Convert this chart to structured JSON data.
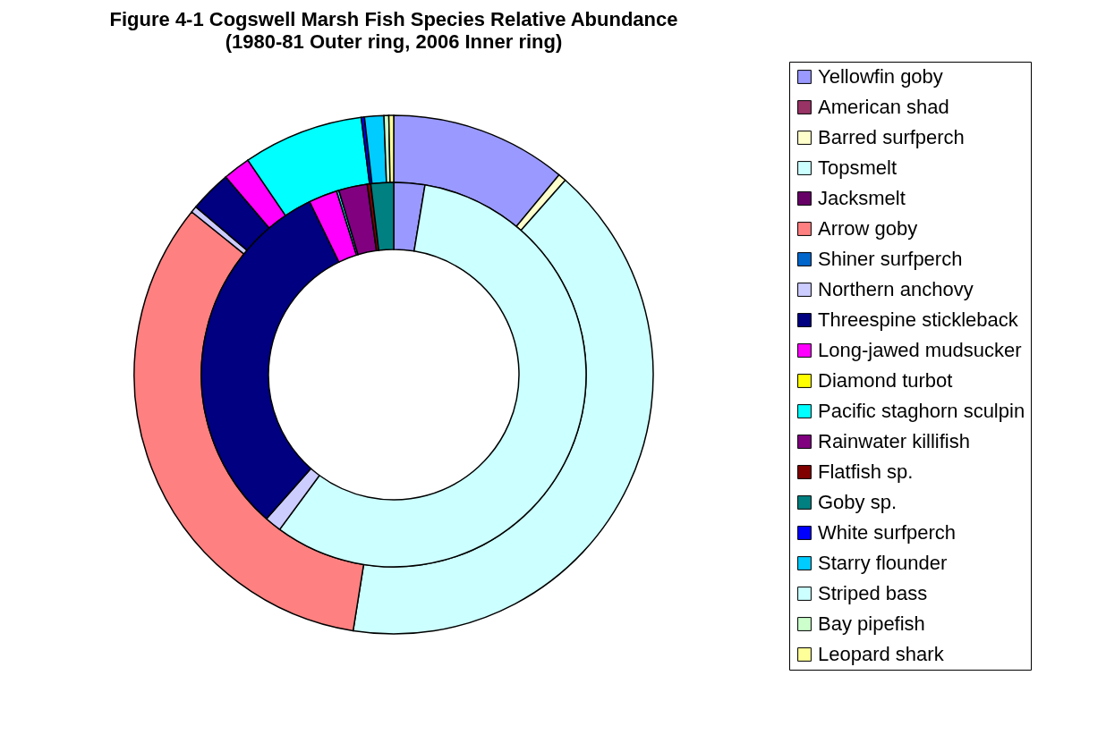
{
  "chart_data": {
    "type": "donut",
    "title": "Figure 4-1 Cogswell Marsh Fish Species Relative Abundance",
    "subtitle": "(1980-81 Outer ring, 2006 Inner ring)",
    "categories": [
      "Yellowfin goby",
      "American shad",
      "Barred surfperch",
      "Topsmelt",
      "Jacksmelt",
      "Arrow goby",
      "Shiner surfperch",
      "Northern anchovy",
      "Threespine stickleback",
      "Long-jawed mudsucker",
      "Diamond turbot",
      "Pacific staghorn sculpin",
      "Rainwater killifish",
      "Flatfish sp.",
      "Goby sp.",
      "White surfperch",
      "Starry flounder",
      "Striped bass",
      "Bay pipefish",
      "Leopard shark"
    ],
    "colors": [
      "#9999ff",
      "#993366",
      "#ffffcc",
      "#ccffff",
      "#660066",
      "#ff8080",
      "#0066cc",
      "#ccccff",
      "#000080",
      "#ff00ff",
      "#ffff00",
      "#00ffff",
      "#800080",
      "#800000",
      "#008080",
      "#0000ff",
      "#00ccff",
      "#ccffff",
      "#ccffcc",
      "#ffff99"
    ],
    "series": [
      {
        "values": [
          11.0,
          0,
          0.5,
          41.0,
          0,
          33.3,
          0,
          0.4,
          2.6,
          1.7,
          0,
          7.5,
          0,
          0,
          0,
          0.2,
          1.2,
          0,
          0.3,
          0.3
        ]
      },
      {
        "values": [
          2.6,
          0,
          0,
          57.5,
          0,
          0,
          0,
          1.4,
          31.3,
          2.4,
          0,
          0.2,
          2.4,
          0.3,
          1.9,
          0,
          0,
          0,
          0,
          0
        ]
      }
    ],
    "legend": "right"
  }
}
